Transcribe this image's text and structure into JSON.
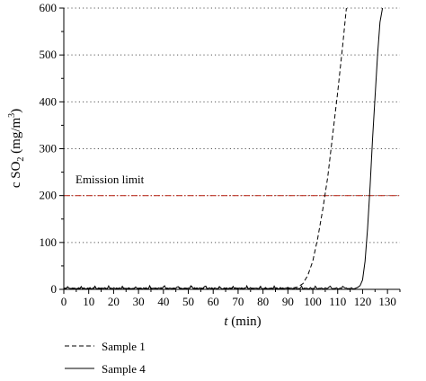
{
  "chart_data": {
    "type": "line",
    "title": "",
    "xlabel_italic": "t",
    "xlabel_rest": " (min)",
    "ylabel": "c SO2 (mg/m3)",
    "ylabel_main": "c SO",
    "ylabel_sub": "2",
    "ylabel_unit": " (mg/m",
    "ylabel_sup": "3",
    "ylabel_close": ")",
    "xlim": [
      0,
      135
    ],
    "ylim": [
      0,
      600
    ],
    "xticks": [
      0,
      10,
      20,
      30,
      40,
      50,
      60,
      70,
      80,
      90,
      100,
      110,
      120,
      130
    ],
    "yticks": [
      0,
      100,
      200,
      300,
      400,
      500,
      600
    ],
    "grid": "horizontal dotted",
    "legend_position": "bottom-left",
    "annotations": [
      {
        "text": "Emission limit",
        "y": 200,
        "color": "#c0392b",
        "style": "dash-dot"
      }
    ],
    "series": [
      {
        "name": "Sample 1",
        "style": "dashed",
        "color": "#000000",
        "x": [
          0,
          90,
          92,
          94,
          96,
          98,
          100,
          102,
          104,
          106,
          108,
          110,
          112,
          113.5
        ],
        "y": [
          2,
          2,
          3,
          5,
          12,
          30,
          60,
          110,
          170,
          240,
          330,
          420,
          520,
          600
        ]
      },
      {
        "name": "Sample 4",
        "style": "solid",
        "color": "#000000",
        "x": [
          0,
          117,
          118,
          119,
          120,
          121,
          122,
          123,
          124,
          125,
          126,
          127,
          128
        ],
        "y": [
          2,
          2,
          4,
          8,
          20,
          60,
          130,
          220,
          320,
          410,
          500,
          570,
          600
        ]
      }
    ]
  }
}
